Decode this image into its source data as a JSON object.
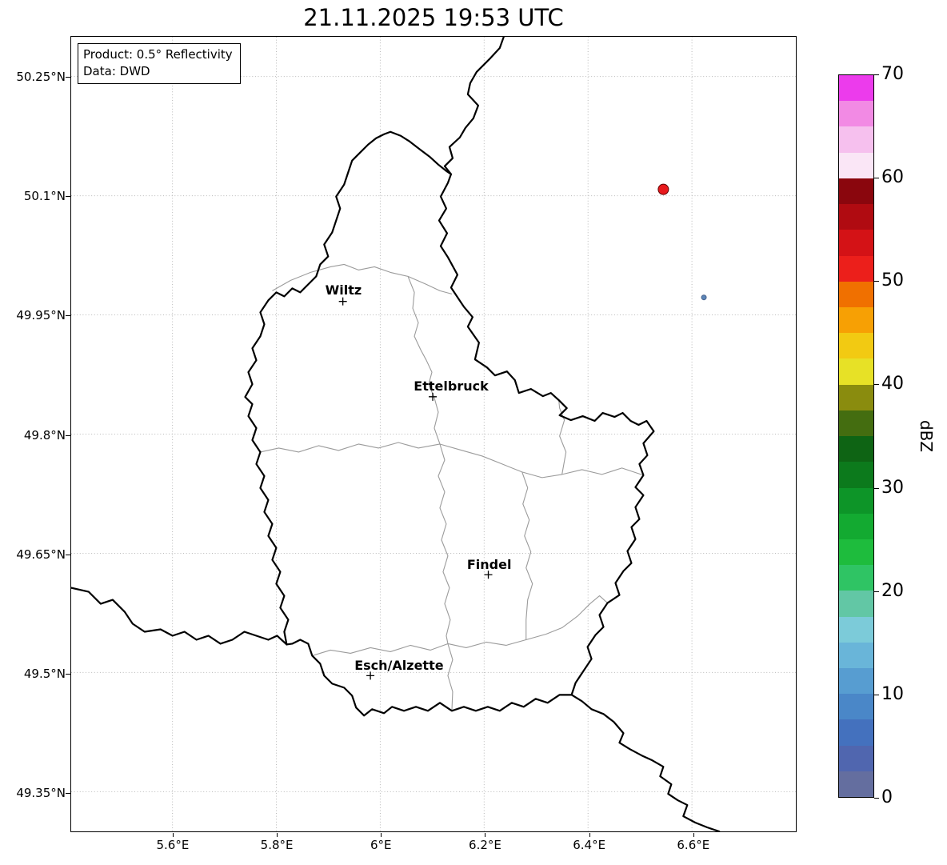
{
  "title": "21.11.2025 19:53 UTC",
  "info_box": {
    "product": "Product: 0.5° Reflectivity",
    "source": "Data: DWD"
  },
  "axes": {
    "lon_min": 5.405,
    "lon_max": 6.8,
    "lat_min": 49.3,
    "lat_max": 50.3,
    "lon_ticks": [
      {
        "value": 5.6,
        "label": "5.6°E"
      },
      {
        "value": 5.8,
        "label": "5.8°E"
      },
      {
        "value": 6.0,
        "label": "6°E"
      },
      {
        "value": 6.2,
        "label": "6.2°E"
      },
      {
        "value": 6.4,
        "label": "6.4°E"
      },
      {
        "value": 6.6,
        "label": "6.6°E"
      }
    ],
    "lat_ticks": [
      {
        "value": 50.25,
        "label": "50.25°N"
      },
      {
        "value": 50.1,
        "label": "50.1°N"
      },
      {
        "value": 49.95,
        "label": "49.95°N"
      },
      {
        "value": 49.8,
        "label": "49.8°N"
      },
      {
        "value": 49.65,
        "label": "49.65°N"
      },
      {
        "value": 49.5,
        "label": "49.5°N"
      },
      {
        "value": 49.35,
        "label": "49.35°N"
      }
    ]
  },
  "cities": [
    {
      "name": "Wiltz",
      "lon": 5.928,
      "lat": 49.967,
      "label_dx": 0
    },
    {
      "name": "Ettelbruck",
      "lon": 6.101,
      "lat": 49.847,
      "label_dx": 22
    },
    {
      "name": "Findel",
      "lon": 6.208,
      "lat": 49.623,
      "label_dx": 0
    },
    {
      "name": "Esch/Alzette",
      "lon": 5.981,
      "lat": 49.496,
      "label_dx": 35
    }
  ],
  "radar_echoes": [
    {
      "lon": 6.545,
      "lat": 50.108,
      "dbz": 51,
      "color": "#e8191c",
      "edge": "#5f0000",
      "radius": 6.5
    },
    {
      "lon": 6.623,
      "lat": 49.972,
      "dbz": 9,
      "color": "#5c86b8",
      "edge": "#47618c",
      "radius": 3
    }
  ],
  "colorbar": {
    "label": "dBZ",
    "min": 0,
    "max": 70,
    "band_step_dbz": 2.5,
    "ticks": [
      {
        "value": 0,
        "label": "0"
      },
      {
        "value": 10,
        "label": "10"
      },
      {
        "value": 20,
        "label": "20"
      },
      {
        "value": 30,
        "label": "30"
      },
      {
        "value": 40,
        "label": "40"
      },
      {
        "value": 50,
        "label": "50"
      },
      {
        "value": 60,
        "label": "60"
      },
      {
        "value": 70,
        "label": "70"
      }
    ],
    "band_colors_bottom_to_top": [
      "#646e9f",
      "#5066af",
      "#4471be",
      "#4a87c8",
      "#579dd1",
      "#69b5d9",
      "#7ccbd9",
      "#62c7a5",
      "#2fc464",
      "#1ebc3d",
      "#13aa31",
      "#0d9528",
      "#0c7a1c",
      "#0e6414",
      "#446d10",
      "#8a8c0e",
      "#e7e126",
      "#f2ca12",
      "#f7a004",
      "#f07000",
      "#ec1f1b",
      "#d41216",
      "#b00b11",
      "#8a060d",
      "#fae6f6",
      "#f6c0ee",
      "#f28ae4",
      "#ec3bec"
    ]
  },
  "colors": {
    "background": "#ffffff",
    "country_border": "#000000",
    "district_border": "#9b9b9b",
    "grid": "#b8b8b8"
  }
}
